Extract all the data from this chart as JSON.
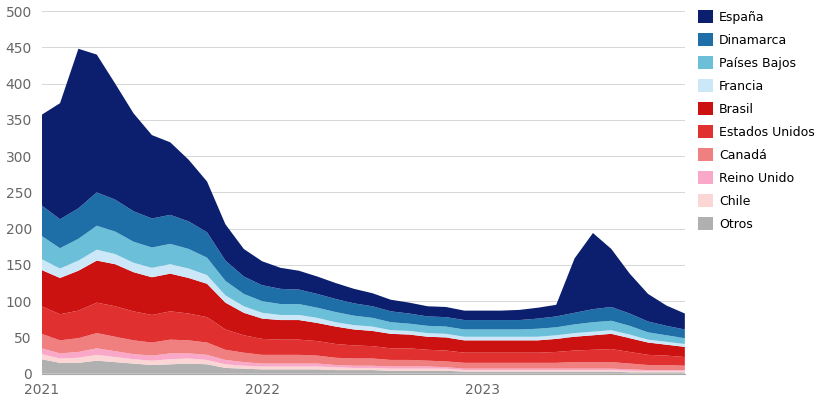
{
  "background_color": "#ffffff",
  "ylim": [
    0,
    500
  ],
  "yticks": [
    0,
    50,
    100,
    150,
    200,
    250,
    300,
    350,
    400,
    450,
    500
  ],
  "x_labels": [
    "2021",
    "2022",
    "2023"
  ],
  "series_order": [
    "Otros",
    "Chile",
    "Reino Unido",
    "Canadá",
    "Estados Unidos",
    "Brasil",
    "Francia",
    "Países Bajos",
    "Dinamarca",
    "España"
  ],
  "series": {
    "Otros": {
      "color": "#b0b0b0",
      "values": [
        20,
        15,
        15,
        18,
        16,
        14,
        12,
        13,
        14,
        13,
        8,
        7,
        6,
        6,
        6,
        6,
        5,
        5,
        5,
        4,
        4,
        4,
        4,
        3,
        3,
        3,
        3,
        3,
        3,
        3,
        3,
        3,
        2,
        2,
        2,
        2
      ]
    },
    "Chile": {
      "color": "#fcd5d5",
      "values": [
        7,
        6,
        7,
        8,
        7,
        6,
        6,
        7,
        7,
        6,
        5,
        4,
        4,
        4,
        4,
        4,
        4,
        3,
        3,
        3,
        3,
        3,
        3,
        2,
        2,
        2,
        2,
        2,
        2,
        2,
        2,
        2,
        2,
        2,
        2,
        2
      ]
    },
    "Reino Unido": {
      "color": "#f9a8c9",
      "values": [
        8,
        7,
        8,
        9,
        8,
        7,
        7,
        8,
        7,
        7,
        6,
        5,
        4,
        4,
        4,
        4,
        3,
        3,
        3,
        3,
        3,
        3,
        2,
        2,
        2,
        2,
        2,
        2,
        2,
        2,
        2,
        2,
        2,
        1,
        1,
        1
      ]
    },
    "Canadá": {
      "color": "#f08080",
      "values": [
        20,
        18,
        19,
        21,
        20,
        19,
        18,
        19,
        18,
        17,
        14,
        13,
        12,
        12,
        12,
        11,
        10,
        10,
        10,
        9,
        9,
        8,
        8,
        8,
        8,
        8,
        8,
        8,
        8,
        9,
        9,
        9,
        8,
        7,
        7,
        6
      ]
    },
    "Estados Unidos": {
      "color": "#e03030",
      "values": [
        38,
        36,
        38,
        42,
        42,
        40,
        38,
        39,
        37,
        35,
        28,
        24,
        22,
        21,
        21,
        20,
        19,
        18,
        17,
        16,
        16,
        15,
        15,
        14,
        14,
        14,
        14,
        14,
        15,
        16,
        17,
        18,
        16,
        14,
        13,
        12
      ]
    },
    "Brasil": {
      "color": "#cc1111",
      "values": [
        50,
        50,
        55,
        58,
        58,
        54,
        52,
        52,
        49,
        46,
        37,
        31,
        28,
        27,
        27,
        25,
        24,
        22,
        21,
        20,
        19,
        18,
        18,
        17,
        17,
        17,
        17,
        17,
        18,
        19,
        20,
        21,
        19,
        17,
        15,
        14
      ]
    },
    "Francia": {
      "color": "#cce8f8",
      "values": [
        15,
        13,
        14,
        15,
        14,
        13,
        13,
        13,
        13,
        12,
        10,
        9,
        8,
        7,
        7,
        7,
        6,
        6,
        6,
        5,
        5,
        5,
        5,
        5,
        5,
        5,
        5,
        5,
        5,
        5,
        5,
        5,
        5,
        4,
        4,
        4
      ]
    },
    "Países Bajos": {
      "color": "#6bbfd8",
      "values": [
        32,
        28,
        30,
        33,
        31,
        29,
        28,
        28,
        27,
        24,
        20,
        17,
        16,
        15,
        15,
        14,
        14,
        13,
        12,
        11,
        10,
        10,
        10,
        10,
        10,
        10,
        10,
        11,
        11,
        12,
        13,
        13,
        12,
        10,
        9,
        8
      ]
    },
    "Dinamarca": {
      "color": "#1e6fa8",
      "values": [
        42,
        40,
        42,
        46,
        44,
        42,
        40,
        40,
        38,
        35,
        28,
        24,
        22,
        21,
        20,
        19,
        18,
        17,
        16,
        15,
        14,
        13,
        13,
        13,
        13,
        13,
        13,
        14,
        15,
        16,
        18,
        19,
        17,
        15,
        13,
        12
      ]
    },
    "España": {
      "color": "#0c1f6e",
      "values": [
        125,
        160,
        220,
        190,
        160,
        135,
        115,
        100,
        85,
        70,
        50,
        38,
        33,
        29,
        26,
        24,
        22,
        20,
        18,
        16,
        15,
        14,
        14,
        13,
        13,
        13,
        14,
        15,
        16,
        75,
        105,
        80,
        55,
        38,
        28,
        22
      ]
    }
  },
  "n_points": 36
}
